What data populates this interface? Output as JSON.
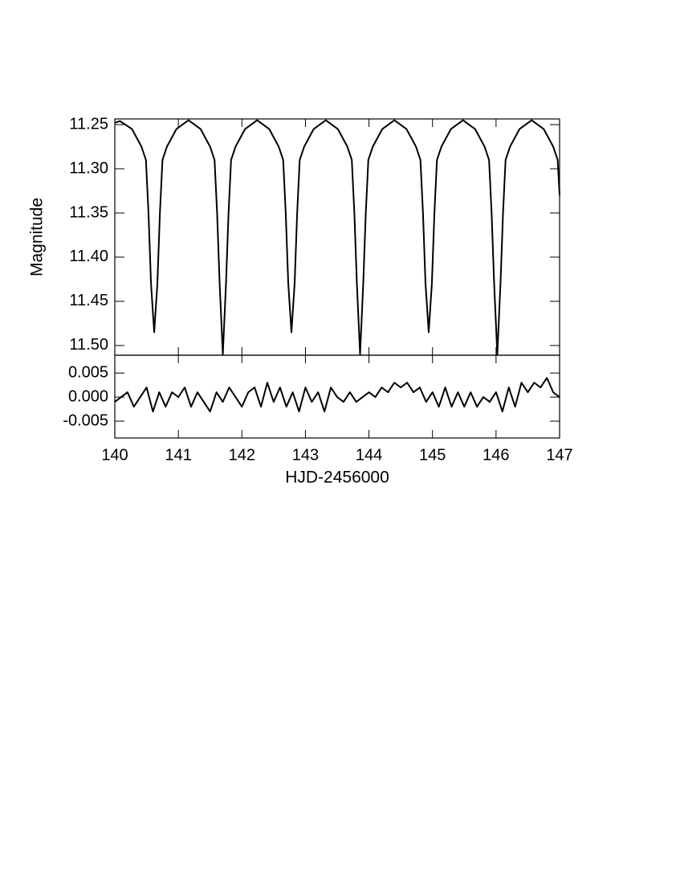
{
  "chart_data": [
    {
      "type": "line",
      "ylabel": "Magnitude",
      "color": "#000000",
      "x": [
        140.0,
        140.08,
        140.27,
        140.42,
        140.49,
        140.53,
        140.57,
        140.62,
        140.67,
        140.71,
        140.75,
        140.82,
        140.97,
        141.16,
        141.35,
        141.5,
        141.57,
        141.61,
        141.65,
        141.7,
        141.75,
        141.79,
        141.83,
        141.9,
        142.05,
        142.24,
        142.43,
        142.58,
        142.65,
        142.69,
        142.73,
        142.78,
        142.83,
        142.87,
        142.91,
        142.98,
        143.13,
        143.32,
        143.51,
        143.66,
        143.73,
        143.77,
        143.81,
        143.86,
        143.91,
        143.95,
        143.99,
        144.06,
        144.21,
        144.4,
        144.59,
        144.74,
        144.81,
        144.85,
        144.89,
        144.94,
        144.99,
        145.03,
        145.07,
        145.14,
        145.29,
        145.48,
        145.67,
        145.82,
        145.89,
        145.93,
        145.97,
        146.02,
        146.07,
        146.11,
        146.15,
        146.22,
        146.37,
        146.56,
        146.75,
        146.9,
        146.97,
        147.0
      ],
      "values": [
        11.248,
        11.246,
        11.255,
        11.275,
        11.29,
        11.35,
        11.43,
        11.485,
        11.43,
        11.35,
        11.29,
        11.275,
        11.255,
        11.245,
        11.255,
        11.275,
        11.29,
        11.35,
        11.43,
        11.51,
        11.43,
        11.35,
        11.29,
        11.275,
        11.255,
        11.245,
        11.255,
        11.275,
        11.29,
        11.35,
        11.43,
        11.485,
        11.43,
        11.35,
        11.29,
        11.275,
        11.255,
        11.245,
        11.255,
        11.275,
        11.29,
        11.35,
        11.43,
        11.51,
        11.43,
        11.35,
        11.29,
        11.275,
        11.255,
        11.245,
        11.255,
        11.275,
        11.29,
        11.35,
        11.43,
        11.485,
        11.43,
        11.35,
        11.29,
        11.275,
        11.255,
        11.245,
        11.255,
        11.275,
        11.29,
        11.35,
        11.43,
        11.51,
        11.43,
        11.35,
        11.29,
        11.275,
        11.255,
        11.245,
        11.255,
        11.275,
        11.29,
        11.33
      ],
      "xlim": [
        140,
        147
      ],
      "xticks": [
        140,
        141,
        142,
        143,
        144,
        145,
        146,
        147
      ],
      "ylim": [
        11.511,
        11.2436
      ],
      "yticks": [
        11.25,
        {
          "value": 11.3,
          "label": "11.30"
        },
        11.35,
        {
          "value": 11.4,
          "label": "11.40"
        },
        11.45,
        {
          "value": 11.5,
          "label": "11.50"
        }
      ]
    },
    {
      "type": "line",
      "xlabel": "HJD-2456000",
      "color": "#000000",
      "x": [
        140.0,
        140.1,
        140.2,
        140.3,
        140.4,
        140.5,
        140.6,
        140.7,
        140.8,
        140.9,
        141.0,
        141.1,
        141.2,
        141.3,
        141.4,
        141.5,
        141.6,
        141.7,
        141.8,
        141.9,
        142.0,
        142.1,
        142.2,
        142.3,
        142.4,
        142.5,
        142.6,
        142.7,
        142.8,
        142.9,
        143.0,
        143.1,
        143.2,
        143.3,
        143.4,
        143.5,
        143.6,
        143.7,
        143.8,
        143.9,
        144.0,
        144.1,
        144.2,
        144.3,
        144.4,
        144.5,
        144.6,
        144.7,
        144.8,
        144.9,
        145.0,
        145.1,
        145.2,
        145.3,
        145.4,
        145.5,
        145.6,
        145.7,
        145.8,
        145.9,
        146.0,
        146.1,
        146.2,
        146.3,
        146.4,
        146.5,
        146.6,
        146.7,
        146.8,
        146.9,
        147.0
      ],
      "values": [
        -0.001,
        0,
        0.001,
        -0.002,
        0,
        0.002,
        -0.003,
        0.001,
        -0.002,
        0.001,
        0,
        0.002,
        -0.002,
        0.001,
        -0.001,
        -0.003,
        0.001,
        -0.001,
        0.002,
        0,
        -0.002,
        0.001,
        0.002,
        -0.002,
        0.003,
        -0.001,
        0.002,
        -0.002,
        0.001,
        -0.003,
        0.002,
        -0.001,
        0.001,
        -0.003,
        0.002,
        0,
        -0.001,
        0.001,
        -0.001,
        0,
        0.001,
        0,
        0.002,
        0.001,
        0.003,
        0.002,
        0.003,
        0.001,
        0.002,
        -0.001,
        0.001,
        -0.002,
        0.002,
        -0.002,
        0.001,
        -0.002,
        0.001,
        -0.002,
        0,
        -0.001,
        0.001,
        -0.003,
        0.002,
        -0.002,
        0.003,
        0.001,
        0.003,
        0.002,
        0.004,
        0.001,
        0
      ],
      "xlim": [
        140,
        147
      ],
      "xticks": [
        140,
        141,
        142,
        143,
        144,
        145,
        146,
        147
      ],
      "ylim": [
        -0.0085,
        0.0087
      ],
      "yticks": [
        -0.005,
        {
          "value": 0,
          "label": "0.000"
        },
        0.005
      ]
    }
  ]
}
